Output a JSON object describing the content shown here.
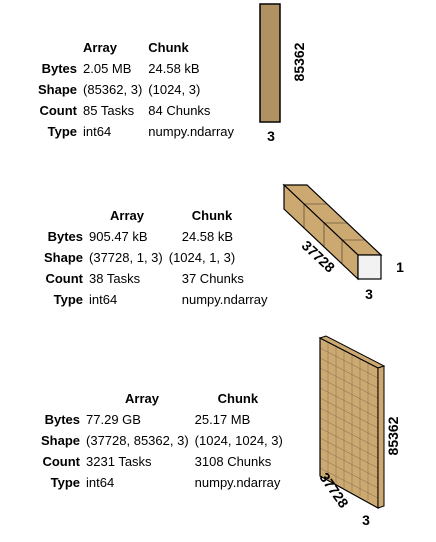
{
  "colors": {
    "face_fill": "#CDA972",
    "edge_stroke": "#000000",
    "end_face_fill": "#F2F2F2"
  },
  "arrays": [
    {
      "header": {
        "array": "Array",
        "chunk": "Chunk"
      },
      "rows": [
        {
          "label": "Bytes",
          "array": "2.05 MB",
          "chunk": "24.58 kB"
        },
        {
          "label": "Shape",
          "array": "(85362, 3)",
          "chunk": "(1024, 3)"
        },
        {
          "label": "Count",
          "array": "85 Tasks",
          "chunk": "84 Chunks"
        },
        {
          "label": "Type",
          "array": "int64",
          "chunk": "numpy.ndarray"
        }
      ],
      "diagram": {
        "dim_long": "85362",
        "dim_width": "3"
      }
    },
    {
      "header": {
        "array": "Array",
        "chunk": "Chunk"
      },
      "rows": [
        {
          "label": "Bytes",
          "array": "905.47 kB",
          "chunk": "24.58 kB"
        },
        {
          "label": "Shape",
          "array": "(37728, 1, 3)",
          "chunk": "(1024, 1, 3)"
        },
        {
          "label": "Count",
          "array": "38 Tasks",
          "chunk": "37 Chunks"
        },
        {
          "label": "Type",
          "array": "int64",
          "chunk": "numpy.ndarray"
        }
      ],
      "diagram": {
        "dim_depth": "37728",
        "dim_width": "3",
        "dim_height": "1"
      }
    },
    {
      "header": {
        "array": "Array",
        "chunk": "Chunk"
      },
      "rows": [
        {
          "label": "Bytes",
          "array": "77.29 GB",
          "chunk": "25.17 MB"
        },
        {
          "label": "Shape",
          "array": "(37728, 85362, 3)",
          "chunk": "(1024, 1024, 3)"
        },
        {
          "label": "Count",
          "array": "3231 Tasks",
          "chunk": "3108 Chunks"
        },
        {
          "label": "Type",
          "array": "int64",
          "chunk": "numpy.ndarray"
        }
      ],
      "diagram": {
        "dim_depth": "37728",
        "dim_width": "3",
        "dim_height": "85362"
      }
    }
  ]
}
